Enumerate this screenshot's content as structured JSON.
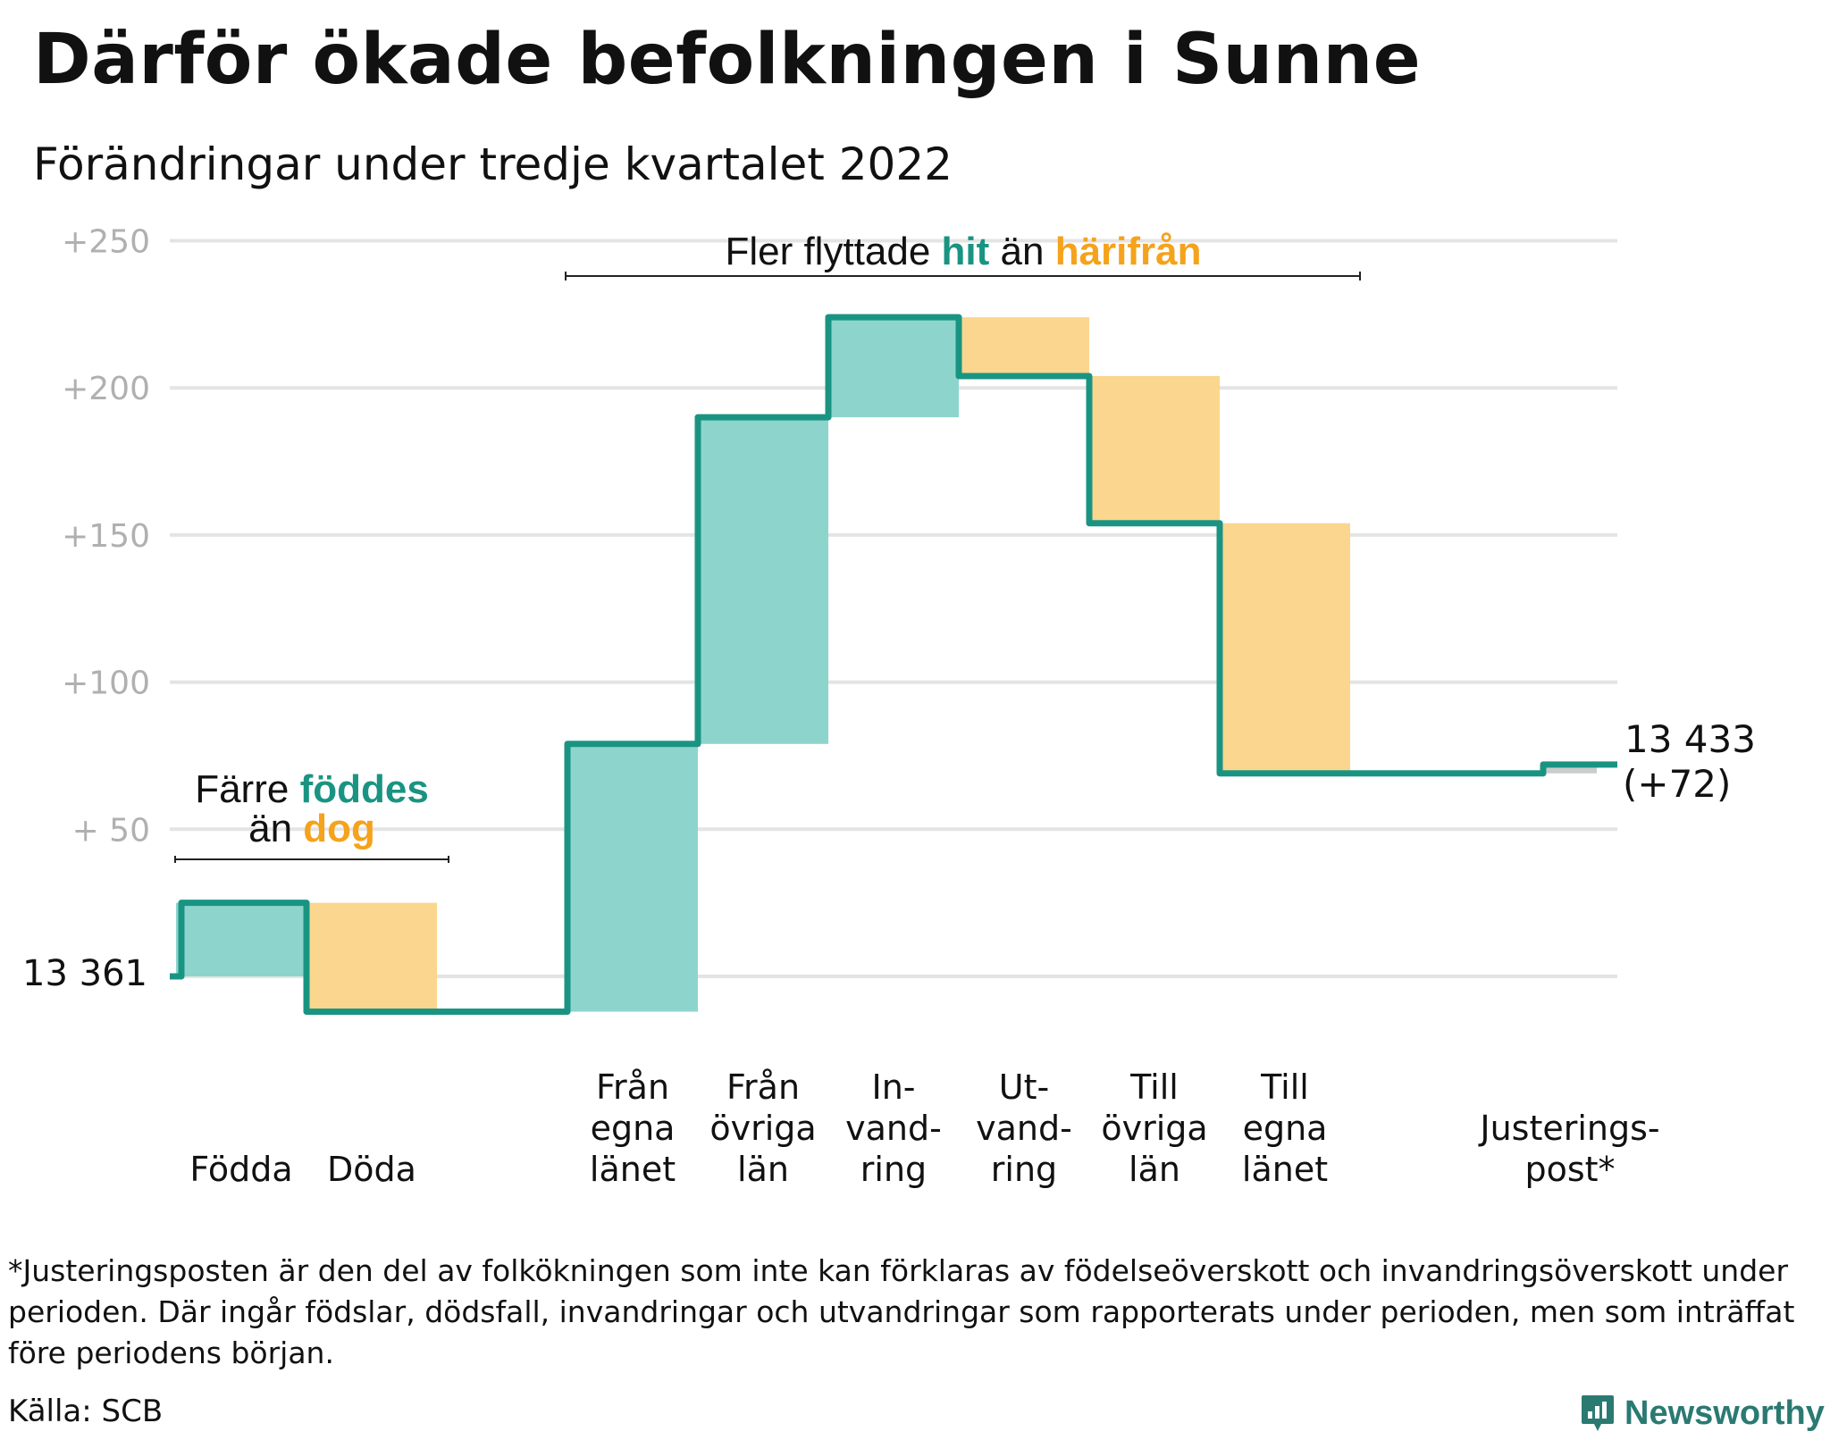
{
  "title": "Därför ökade befolkningen i Sunne",
  "subtitle": "Förändringar under tredje kvartalet 2022",
  "chart_data": {
    "type": "waterfall",
    "start_value": 13361,
    "start_label": "13 361",
    "end_value": 13433,
    "end_label": "13 433",
    "end_change_label": "(+72)",
    "y_ticks": [
      "+250",
      "+200",
      "+150",
      "+100",
      "+ 50"
    ],
    "ylim": [
      -20,
      255
    ],
    "grid": true,
    "steps": [
      {
        "label": [
          "Födda"
        ],
        "value": 25
      },
      {
        "label": [
          "Döda"
        ],
        "value": -37
      },
      {
        "label": [
          "Från",
          "egna",
          "länet"
        ],
        "value": 91
      },
      {
        "label": [
          "Från",
          "övriga",
          "län"
        ],
        "value": 111
      },
      {
        "label": [
          "In-",
          "vand-",
          "ring"
        ],
        "value": 34
      },
      {
        "label": [
          "Ut-",
          "vand-",
          "ring"
        ],
        "value": -20
      },
      {
        "label": [
          "Till",
          "övriga",
          "län"
        ],
        "value": -50
      },
      {
        "label": [
          "Till",
          "egna",
          "länet"
        ],
        "value": -85
      },
      {
        "label": [
          "Justerings-",
          "post*"
        ],
        "value": 3
      }
    ],
    "annotations": [
      {
        "id": "births",
        "line1": [
          "Färre ",
          "föddes"
        ],
        "line2": [
          "än ",
          "dog"
        ]
      },
      {
        "id": "moves",
        "line1": [
          "Fler flyttade ",
          "hit",
          " än ",
          "härifrån"
        ]
      }
    ],
    "colors": {
      "line": "#1a9482",
      "increase": "#8dd5cc",
      "decrease": "#fad68e",
      "adjustment": "#cccccc",
      "accent_teal": "#1a9482",
      "accent_orange": "#f5a21c",
      "grid": "#e4e4e4",
      "tick": "#b0b0b0"
    }
  },
  "footnote": "*Justeringsposten är den del av folkökningen som inte kan förklaras av födelseöverskott och invandringsöverskott under perioden. Där ingår födslar, dödsfall, invandringar och utvandringar som rapporterats under perioden, men som inträffat före periodens början.",
  "source": "Källa: SCB",
  "brand": {
    "name": "Newsworthy",
    "icon": "newsworthy-logo-icon"
  }
}
